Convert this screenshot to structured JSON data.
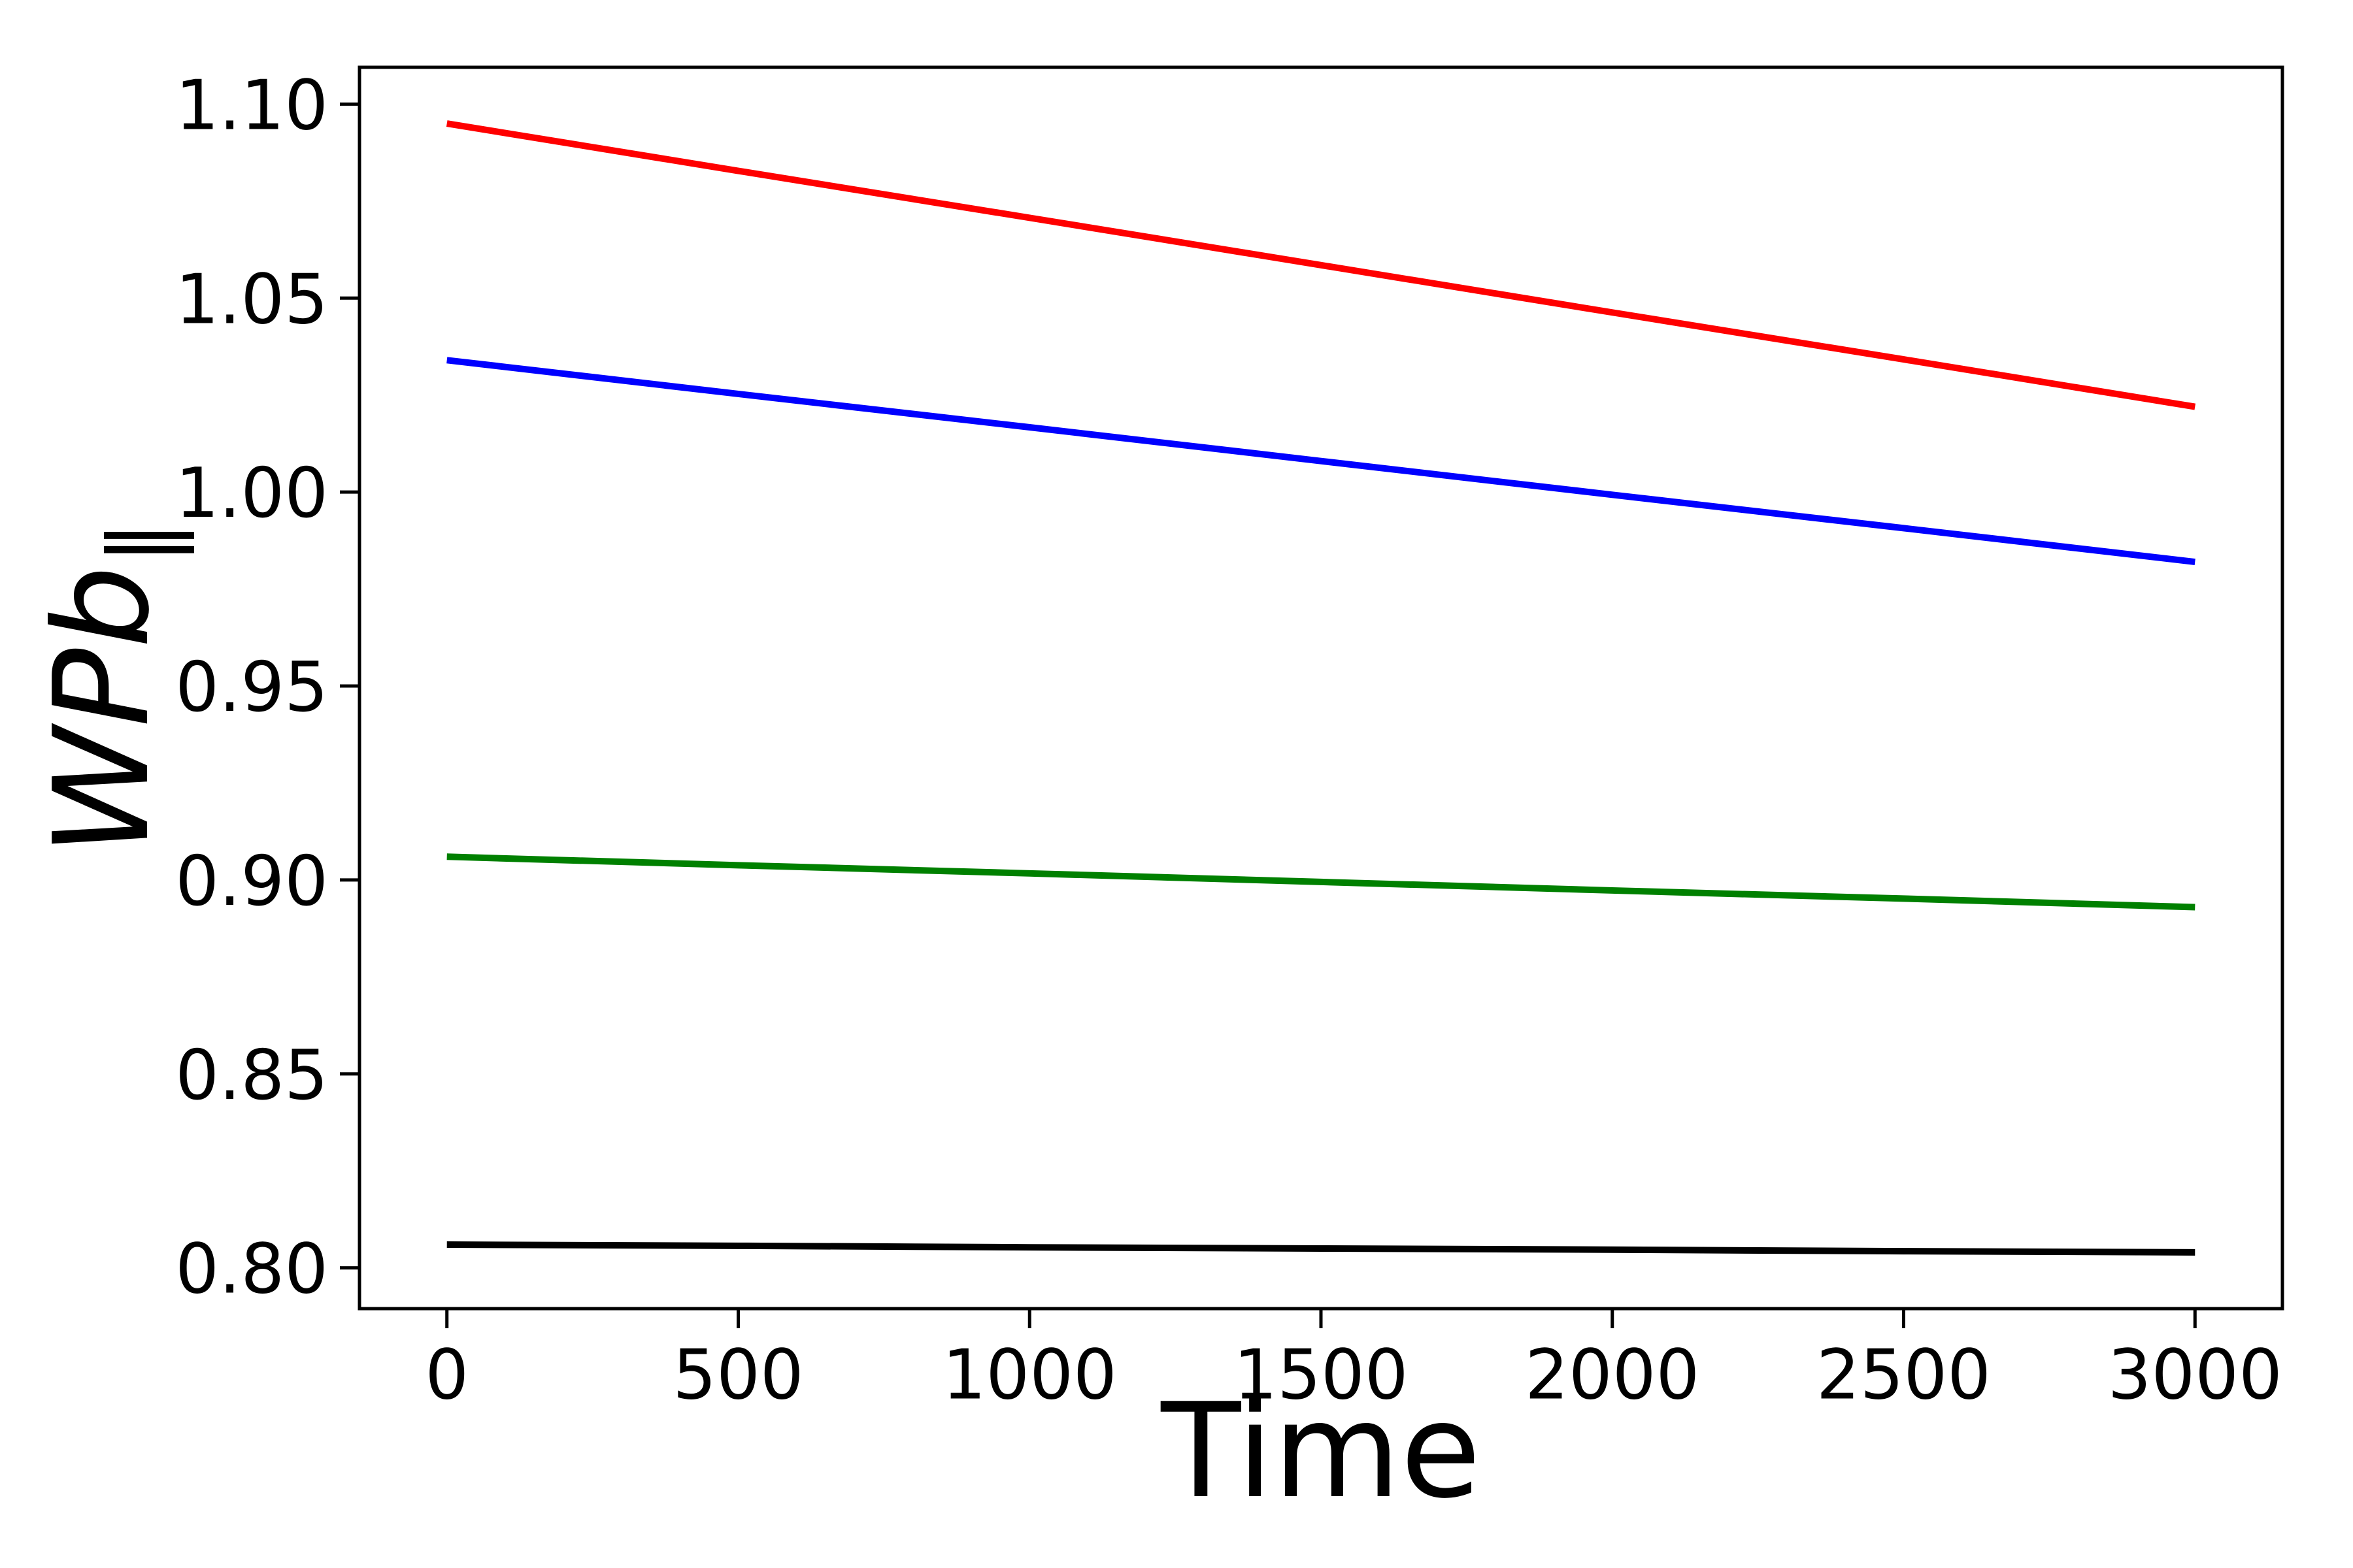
{
  "chart_data": {
    "type": "line",
    "title": "",
    "xlabel": "Time",
    "ylabel": "WPb∥",
    "ylabel_main": "WPb",
    "ylabel_sub": "∥",
    "x": [
      0,
      500,
      1000,
      1500,
      2000,
      2500,
      3000
    ],
    "series": [
      {
        "name": "red-line",
        "color": "#ff0000",
        "values": [
          1.095,
          1.0828,
          1.0707,
          1.0585,
          1.0463,
          1.0342,
          1.022
        ]
      },
      {
        "name": "blue-line",
        "color": "#0000ff",
        "values": [
          1.034,
          1.0253,
          1.0167,
          1.008,
          0.9993,
          0.9907,
          0.982
        ]
      },
      {
        "name": "green-line",
        "color": "#008000",
        "values": [
          0.906,
          0.9038,
          0.9017,
          0.8995,
          0.8973,
          0.8952,
          0.893
        ]
      },
      {
        "name": "black-line",
        "color": "#000000",
        "values": [
          0.806,
          0.8057,
          0.8053,
          0.805,
          0.8047,
          0.8043,
          0.804
        ]
      }
    ],
    "xlim": [
      -150,
      3150
    ],
    "ylim": [
      0.7895,
      1.1095
    ],
    "xticks": [
      {
        "value": 0,
        "label": "0"
      },
      {
        "value": 500,
        "label": "500"
      },
      {
        "value": 1000,
        "label": "1000"
      },
      {
        "value": 1500,
        "label": "1500"
      },
      {
        "value": 2000,
        "label": "2000"
      },
      {
        "value": 2500,
        "label": "2500"
      },
      {
        "value": 3000,
        "label": "3000"
      }
    ],
    "yticks": [
      {
        "value": 0.8,
        "label": "0.80"
      },
      {
        "value": 0.85,
        "label": "0.85"
      },
      {
        "value": 0.9,
        "label": "0.90"
      },
      {
        "value": 0.95,
        "label": "0.95"
      },
      {
        "value": 1.0,
        "label": "1.00"
      },
      {
        "value": 1.05,
        "label": "1.05"
      },
      {
        "value": 1.1,
        "label": "1.10"
      }
    ],
    "grid": false,
    "legend": null,
    "colors": {
      "spine": "#000000",
      "tick": "#000000",
      "background": "#ffffff"
    }
  }
}
